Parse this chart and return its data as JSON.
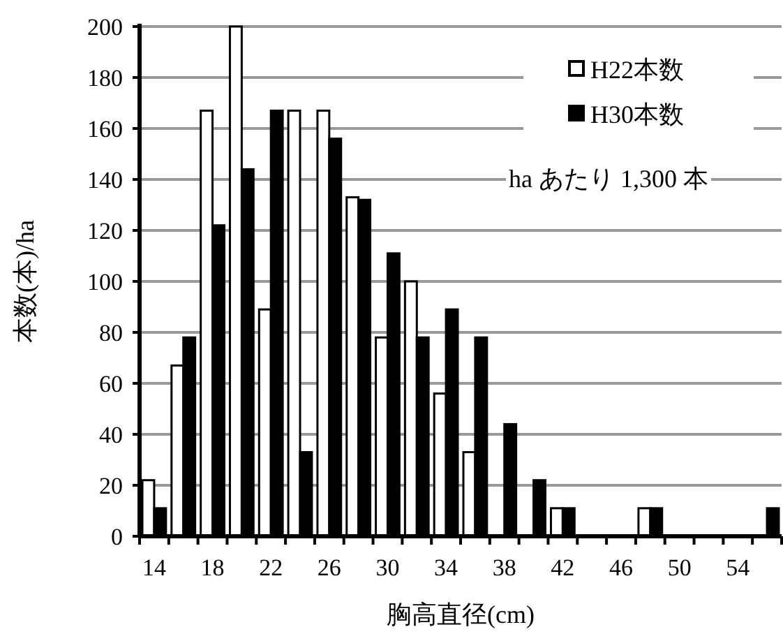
{
  "chart_data": {
    "type": "bar",
    "xlabel": "胸高直径(cm)",
    "ylabel": "本数(本)/ha",
    "categories": [
      "14",
      null,
      "18",
      null,
      "22",
      null,
      "26",
      null,
      "30",
      null,
      "34",
      null,
      "38",
      null,
      "42",
      null,
      "46",
      null,
      "50",
      null,
      "54",
      null
    ],
    "series": [
      {
        "name": "H22本数",
        "color": "#ffffff",
        "values": [
          22,
          67,
          167,
          200,
          89,
          167,
          167,
          133,
          78,
          100,
          56,
          33,
          0,
          0,
          11,
          0,
          0,
          11,
          0,
          0,
          0,
          0
        ]
      },
      {
        "name": "H30本数",
        "color": "#000000",
        "values": [
          11,
          78,
          122,
          144,
          167,
          33,
          156,
          132,
          111,
          78,
          89,
          78,
          44,
          22,
          11,
          0,
          0,
          11,
          0,
          0,
          0,
          11
        ]
      }
    ],
    "ylim": [
      0,
      200
    ],
    "yticks": [
      0,
      20,
      40,
      60,
      80,
      100,
      120,
      140,
      160,
      180,
      200
    ],
    "grid": "y",
    "legend": "top right",
    "annotations": [
      "ha あたり 1,300 本"
    ]
  }
}
